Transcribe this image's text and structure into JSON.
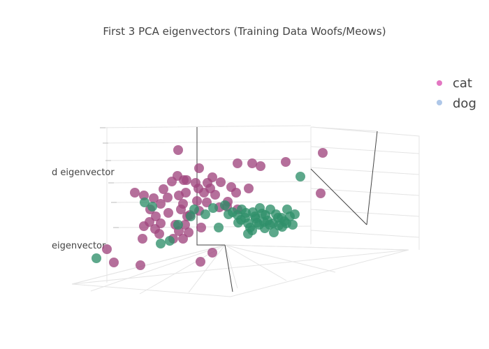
{
  "chart_data": {
    "type": "scatter3d",
    "title": "First 3 PCA eigenvectors (Training Data Woofs/Meows)",
    "axis_labels": {
      "x": "",
      "y": "eigenvector",
      "z": "d eigenvector"
    },
    "legend": {
      "placement": "top-right",
      "entries": [
        {
          "name": "cat",
          "color": "#e377c2"
        },
        {
          "name": "dog",
          "color": "#aec7e8"
        }
      ]
    },
    "grid": true,
    "series": [
      {
        "name": "cat",
        "marker_color": "#a0477f",
        "points": [
          [
            255,
            215
          ],
          [
            462,
            219
          ],
          [
            340,
            234
          ],
          [
            361,
            234
          ],
          [
            373,
            238
          ],
          [
            409,
            232
          ],
          [
            285,
            241
          ],
          [
            254,
            252
          ],
          [
            304,
            254
          ],
          [
            263,
            258
          ],
          [
            246,
            260
          ],
          [
            234,
            271
          ],
          [
            267,
            258
          ],
          [
            280,
            262
          ],
          [
            297,
            262
          ],
          [
            316,
            261
          ],
          [
            284,
            270
          ],
          [
            301,
            270
          ],
          [
            292,
            276
          ],
          [
            308,
            279
          ],
          [
            331,
            268
          ],
          [
            356,
            270
          ],
          [
            338,
            276
          ],
          [
            193,
            276
          ],
          [
            206,
            280
          ],
          [
            220,
            284
          ],
          [
            240,
            283
          ],
          [
            256,
            280
          ],
          [
            266,
            276
          ],
          [
            230,
            292
          ],
          [
            262,
            292
          ],
          [
            282,
            288
          ],
          [
            296,
            290
          ],
          [
            314,
            297
          ],
          [
            325,
            296
          ],
          [
            241,
            305
          ],
          [
            259,
            300
          ],
          [
            272,
            308
          ],
          [
            285,
            302
          ],
          [
            223,
            310
          ],
          [
            214,
            318
          ],
          [
            230,
            320
          ],
          [
            251,
            322
          ],
          [
            265,
            322
          ],
          [
            288,
            326
          ],
          [
            206,
            324
          ],
          [
            222,
            328
          ],
          [
            256,
            331
          ],
          [
            270,
            333
          ],
          [
            204,
            342
          ],
          [
            248,
            342
          ],
          [
            262,
            342
          ],
          [
            153,
            357
          ],
          [
            163,
            376
          ],
          [
            201,
            380
          ],
          [
            287,
            375
          ],
          [
            304,
            362
          ],
          [
            459,
            277
          ],
          [
            340,
            300
          ],
          [
            215,
            300
          ],
          [
            228,
            335
          ],
          [
            268,
            310
          ],
          [
            326,
            289
          ]
        ]
      },
      {
        "name": "dog",
        "marker_color": "#2f8f6a",
        "points": [
          [
            430,
            253
          ],
          [
            207,
            290
          ],
          [
            218,
            296
          ],
          [
            138,
            370
          ],
          [
            230,
            349
          ],
          [
            243,
            345
          ],
          [
            255,
            322
          ],
          [
            273,
            310
          ],
          [
            278,
            300
          ],
          [
            294,
            307
          ],
          [
            305,
            298
          ],
          [
            313,
            326
          ],
          [
            322,
            294
          ],
          [
            327,
            307
          ],
          [
            333,
            304
          ],
          [
            340,
            308
          ],
          [
            346,
            300
          ],
          [
            351,
            312
          ],
          [
            355,
            335
          ],
          [
            358,
            326
          ],
          [
            362,
            304
          ],
          [
            366,
            313
          ],
          [
            371,
            322
          ],
          [
            375,
            306
          ],
          [
            379,
            327
          ],
          [
            383,
            316
          ],
          [
            387,
            300
          ],
          [
            391,
            320
          ],
          [
            395,
            307
          ],
          [
            399,
            323
          ],
          [
            403,
            312
          ],
          [
            407,
            317
          ],
          [
            411,
            300
          ],
          [
            415,
            310
          ],
          [
            419,
            322
          ],
          [
            422,
            307
          ],
          [
            355,
            320
          ],
          [
            368,
            319
          ],
          [
            378,
            318
          ],
          [
            392,
            333
          ],
          [
            398,
            312
          ],
          [
            386,
            322
          ],
          [
            361,
            330
          ],
          [
            345,
            315
          ],
          [
            372,
            298
          ],
          [
            404,
            325
          ],
          [
            352,
            305
          ],
          [
            341,
            319
          ],
          [
            365,
            310
          ],
          [
            410,
            320
          ],
          [
            380,
            308
          ]
        ]
      }
    ]
  }
}
